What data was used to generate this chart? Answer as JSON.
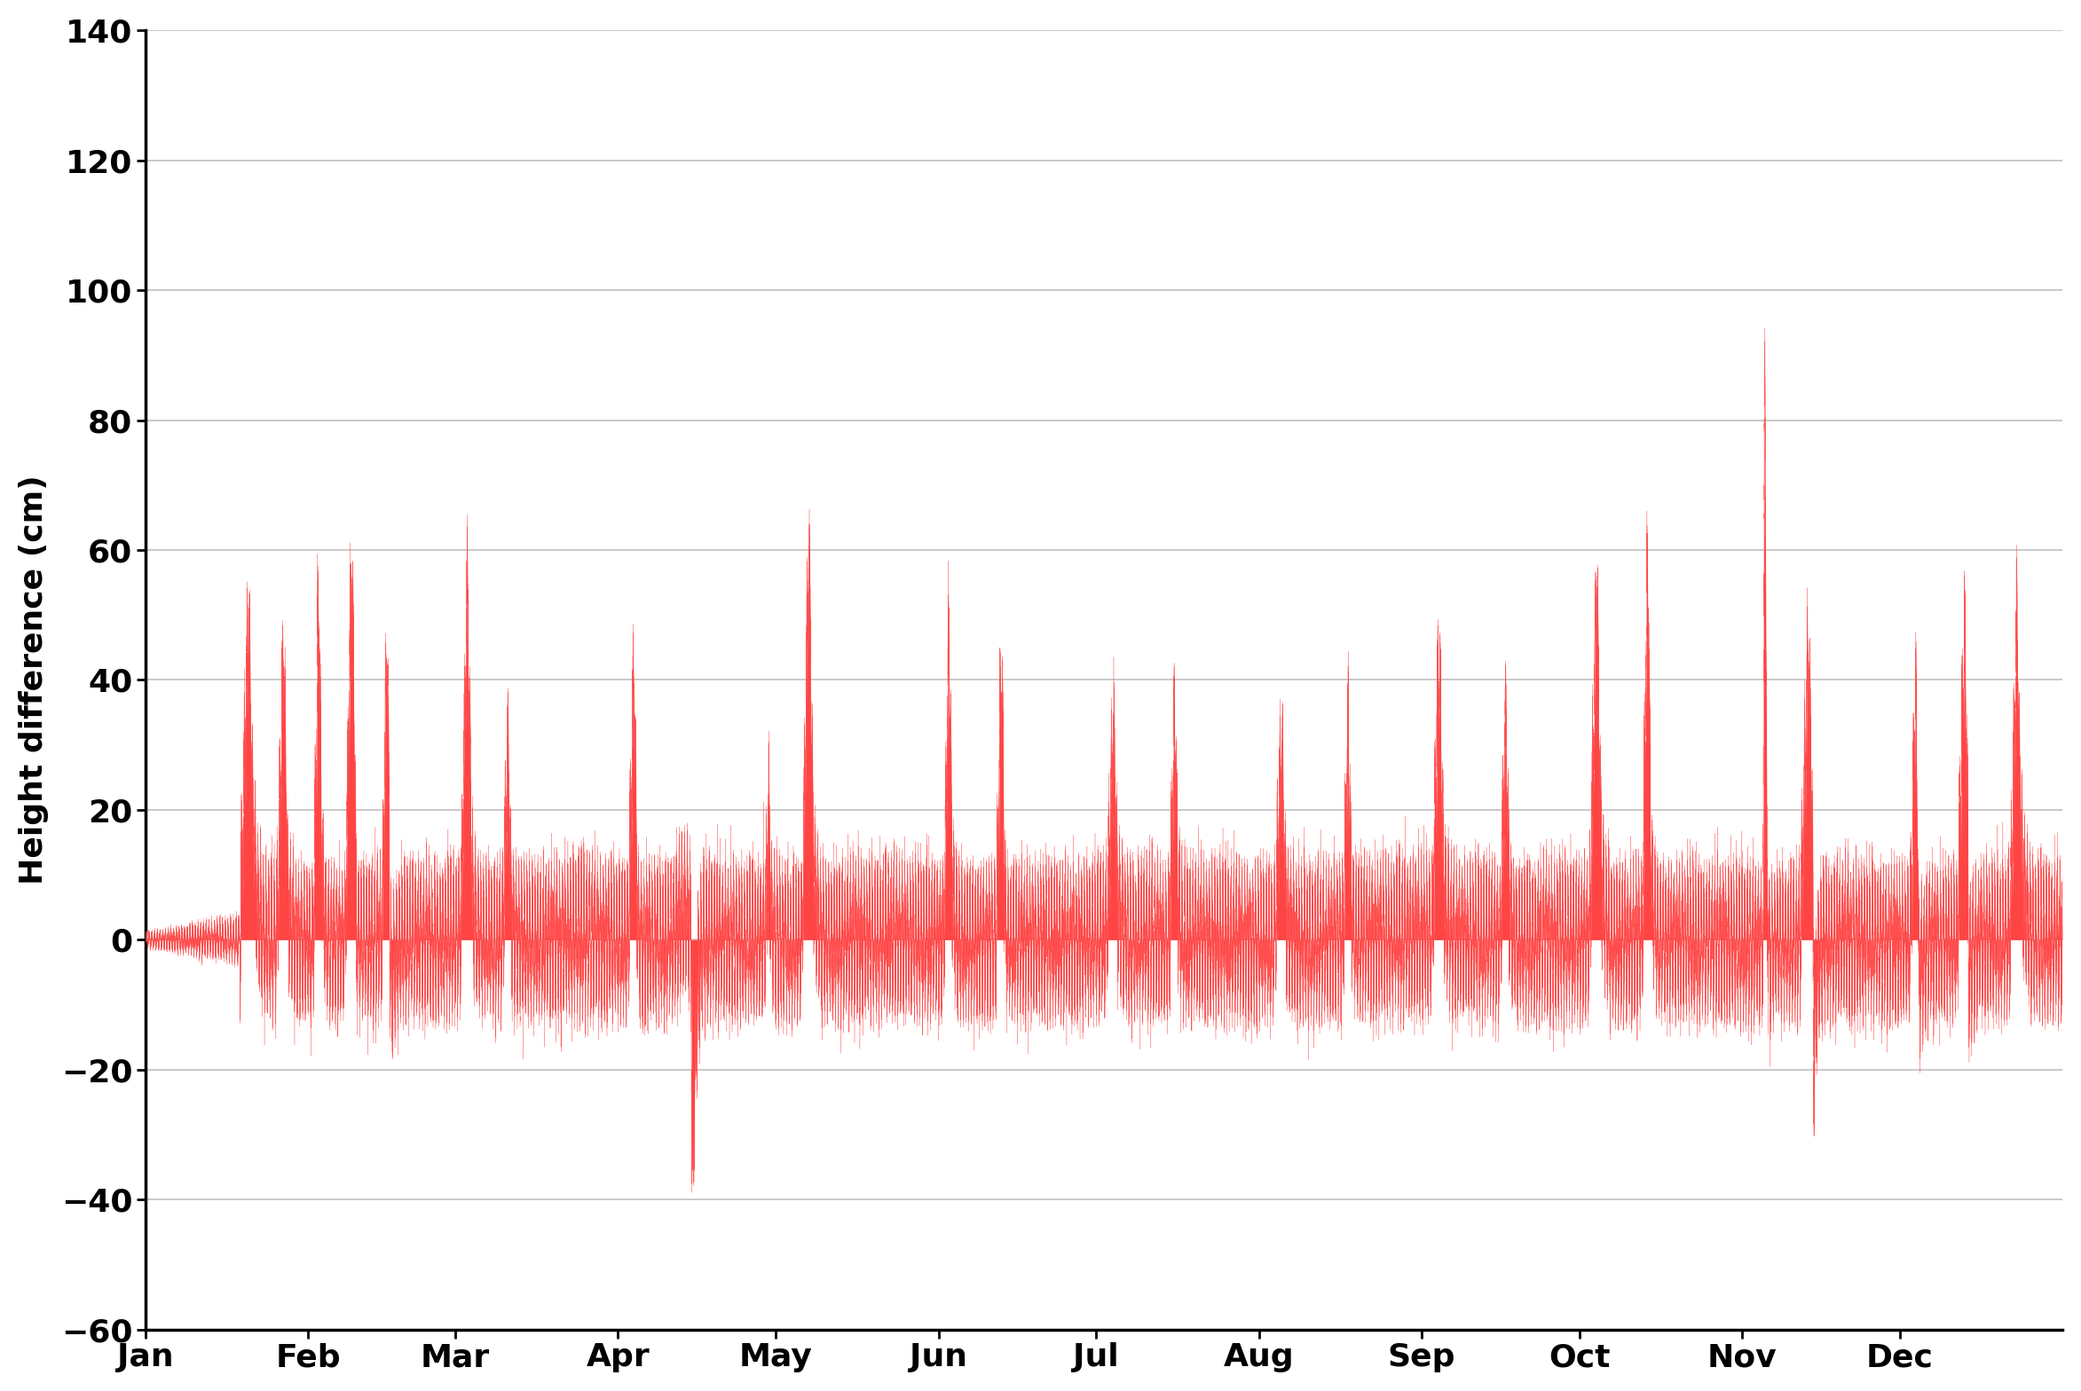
{
  "title": "",
  "ylabel": "Height difference (cm)",
  "xlabel": "",
  "ylim": [
    -60,
    140
  ],
  "yticks": [
    -60,
    -40,
    -20,
    0,
    20,
    40,
    60,
    80,
    100,
    120,
    140
  ],
  "months": [
    "Jan",
    "Feb",
    "Mar",
    "Apr",
    "May",
    "Jun",
    "Jul",
    "Aug",
    "Sep",
    "Oct",
    "Nov",
    "Dec"
  ],
  "fill_color": "#FF4444",
  "line_color": "#FF4444",
  "background_color": "#ffffff",
  "grid_color": "#c0c0c0",
  "figsize": [
    23.45,
    15.68
  ],
  "dpi": 100,
  "ylabel_fontsize": 26,
  "tick_fontsize": 26,
  "tick_fontweight": "bold",
  "ylabel_fontweight": "bold"
}
